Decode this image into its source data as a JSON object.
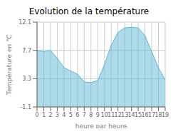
{
  "chart_data": {
    "type": "area",
    "title": "Evolution de la température",
    "x_label": "heure par heure",
    "y_label": "Température en °C",
    "x": [
      0,
      1,
      2,
      3,
      4,
      5,
      6,
      7,
      8,
      9,
      10,
      11,
      12,
      13,
      14,
      15,
      16,
      17,
      18,
      19
    ],
    "values": [
      7.7,
      7.5,
      7.7,
      6.5,
      5.0,
      4.5,
      4.0,
      2.8,
      2.7,
      3.0,
      5.5,
      8.5,
      10.5,
      11.2,
      11.3,
      11.2,
      10.0,
      7.5,
      5.0,
      3.1
    ],
    "color": "#5bb8d4",
    "xlim": [
      0,
      19
    ],
    "xticks": [
      0,
      1,
      2,
      3,
      4,
      5,
      6,
      7,
      8,
      9,
      10,
      11,
      12,
      13,
      14,
      15,
      16,
      17,
      18,
      19
    ],
    "ylim": [
      -1.1,
      12.1
    ],
    "yticks": [
      -1.1,
      3.3,
      7.7,
      12.1
    ],
    "grid": true
  }
}
